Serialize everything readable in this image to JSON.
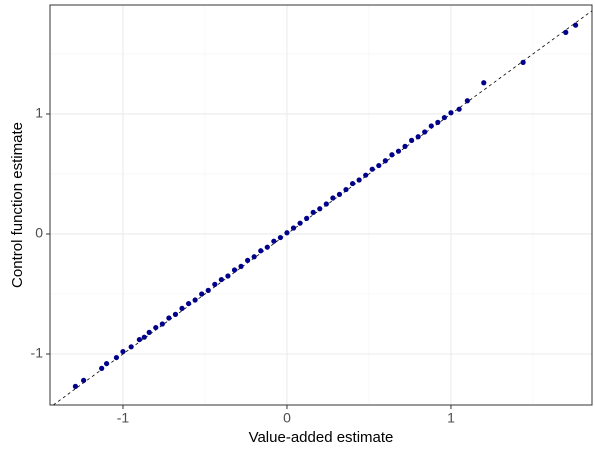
{
  "chart_data": {
    "type": "scatter",
    "x_label": "Value-added estimate",
    "y_label": "Control function estimate",
    "color": "#00008b",
    "xlim": [
      -1.445,
      1.86
    ],
    "ylim": [
      -1.425,
      1.908
    ],
    "xticks": [
      -1,
      0,
      1
    ],
    "yticks": [
      -1,
      0,
      1
    ],
    "xminor": [
      -0.5,
      0.5,
      1.5
    ],
    "yminor": [
      -0.5,
      0.5,
      1.5
    ],
    "grid": true,
    "x": [
      -1.29,
      -1.24,
      -1.13,
      -1.1,
      -1.04,
      -1.0,
      -0.95,
      -0.9,
      -0.87,
      -0.84,
      -0.8,
      -0.76,
      -0.72,
      -0.68,
      -0.64,
      -0.6,
      -0.56,
      -0.52,
      -0.48,
      -0.44,
      -0.4,
      -0.36,
      -0.32,
      -0.28,
      -0.24,
      -0.2,
      -0.16,
      -0.12,
      -0.08,
      -0.04,
      0,
      0.04,
      0.08,
      0.12,
      0.16,
      0.2,
      0.24,
      0.28,
      0.32,
      0.36,
      0.4,
      0.44,
      0.48,
      0.52,
      0.56,
      0.6,
      0.64,
      0.68,
      0.72,
      0.76,
      0.8,
      0.84,
      0.88,
      0.92,
      0.96,
      1.0,
      1.05,
      1.1,
      1.2,
      1.44,
      1.7,
      1.76
    ],
    "values": [
      -1.27,
      -1.22,
      -1.12,
      -1.08,
      -1.03,
      -0.98,
      -0.94,
      -0.88,
      -0.86,
      -0.82,
      -0.78,
      -0.75,
      -0.7,
      -0.67,
      -0.62,
      -0.58,
      -0.55,
      -0.5,
      -0.47,
      -0.42,
      -0.38,
      -0.35,
      -0.3,
      -0.27,
      -0.22,
      -0.19,
      -0.14,
      -0.11,
      -0.06,
      -0.03,
      0.01,
      0.05,
      0.09,
      0.13,
      0.18,
      0.21,
      0.25,
      0.3,
      0.33,
      0.37,
      0.42,
      0.45,
      0.49,
      0.54,
      0.57,
      0.61,
      0.66,
      0.69,
      0.73,
      0.78,
      0.81,
      0.85,
      0.9,
      0.93,
      0.97,
      1.01,
      1.04,
      1.11,
      1.26,
      1.43,
      1.68,
      1.74
    ]
  }
}
